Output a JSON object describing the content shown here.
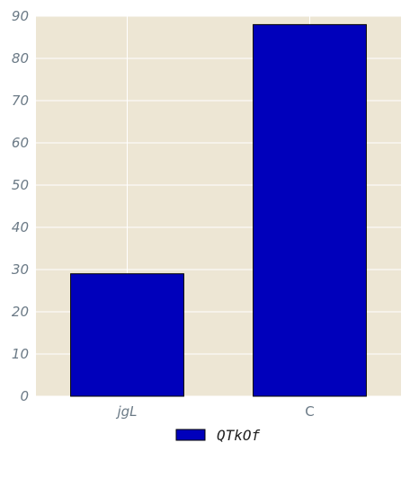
{
  "chart_data": {
    "type": "bar",
    "categories": [
      "jgL",
      "C"
    ],
    "category_styles": [
      "italic",
      "normal"
    ],
    "series": [
      {
        "name": "QTkOf",
        "values": [
          29,
          88
        ]
      }
    ],
    "ylim": [
      0,
      90
    ],
    "yticks": [
      0,
      10,
      20,
      30,
      40,
      50,
      60,
      70,
      80,
      90
    ],
    "grid": true,
    "legend_position": "bottom-center",
    "colors": {
      "plot_background": "#ede6d4",
      "bar_fill": "#0000bb",
      "bar_edge": "#000000",
      "grid": "#ffffff",
      "tick_text": "#6b7a86"
    }
  }
}
